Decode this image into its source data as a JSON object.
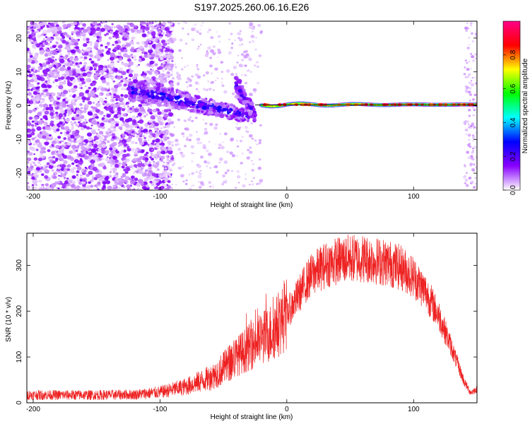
{
  "title": "S197.2025.260.06.16.E26",
  "colors": {
    "snr_line": "#ee2222",
    "frame": "#000000",
    "background": "#ffffff"
  },
  "chart_data": [
    {
      "type": "heatmap",
      "title": "S197.2025.260.06.16.E26",
      "xlabel": "Height of straight line (km)",
      "ylabel": "Frequency (Hz)",
      "xlim": [
        -205,
        150
      ],
      "ylim": [
        -25,
        25
      ],
      "x_ticks": [
        -200,
        -100,
        0,
        100
      ],
      "y_ticks": [
        -20,
        -10,
        0,
        10,
        20
      ],
      "colorbar": {
        "label": "Normalized spectral amplitude",
        "range": [
          0.0,
          1.0
        ],
        "ticks": [
          "0.0",
          "0.2",
          "0.4",
          "0.6",
          "0.8"
        ],
        "tick_values": [
          0.0,
          0.2,
          0.4,
          0.6,
          0.8
        ],
        "colors": [
          "#ffffff",
          "#8800ff",
          "#0000ff",
          "#00ffff",
          "#00ff00",
          "#ffff00",
          "#ff0000",
          "#ff0088"
        ]
      },
      "features": [
        {
          "name": "noise field",
          "x_range": [
            -205,
            -100
          ],
          "freq_range": [
            -25,
            25
          ],
          "amplitude": 0.1
        },
        {
          "name": "descending streak",
          "x_range": [
            -125,
            -30
          ],
          "freq_start": 5,
          "freq_end": -3,
          "amplitude": 0.25
        },
        {
          "name": "secondary streak",
          "x_range": [
            -40,
            -25
          ],
          "freq_start": 6,
          "freq_end": -3,
          "amplitude": 0.2
        },
        {
          "name": "main tone",
          "x_range": [
            -20,
            150
          ],
          "freq": 0.3,
          "amplitude": 0.9
        }
      ]
    },
    {
      "type": "line",
      "xlabel": "Height of straight line (km)",
      "ylabel": "SNR (10 * v/v)",
      "xlim": [
        -205,
        150
      ],
      "ylim": [
        0,
        370
      ],
      "x_ticks": [
        -200,
        -100,
        0,
        100
      ],
      "y_ticks": [
        0,
        100,
        200,
        300
      ],
      "series": [
        {
          "name": "SNR",
          "color": "#ee2222",
          "x": [
            -205,
            -180,
            -150,
            -120,
            -100,
            -80,
            -60,
            -50,
            -40,
            -30,
            -20,
            -15,
            -10,
            -5,
            0,
            5,
            10,
            15,
            20,
            30,
            40,
            50,
            60,
            70,
            80,
            90,
            100,
            110,
            120,
            130,
            140,
            145,
            150
          ],
          "values": [
            17,
            17,
            17,
            18,
            23,
            35,
            55,
            75,
            100,
            120,
            140,
            148,
            160,
            175,
            195,
            215,
            238,
            262,
            280,
            300,
            310,
            315,
            315,
            310,
            305,
            295,
            275,
            240,
            190,
            120,
            45,
            22,
            30
          ]
        }
      ]
    }
  ]
}
